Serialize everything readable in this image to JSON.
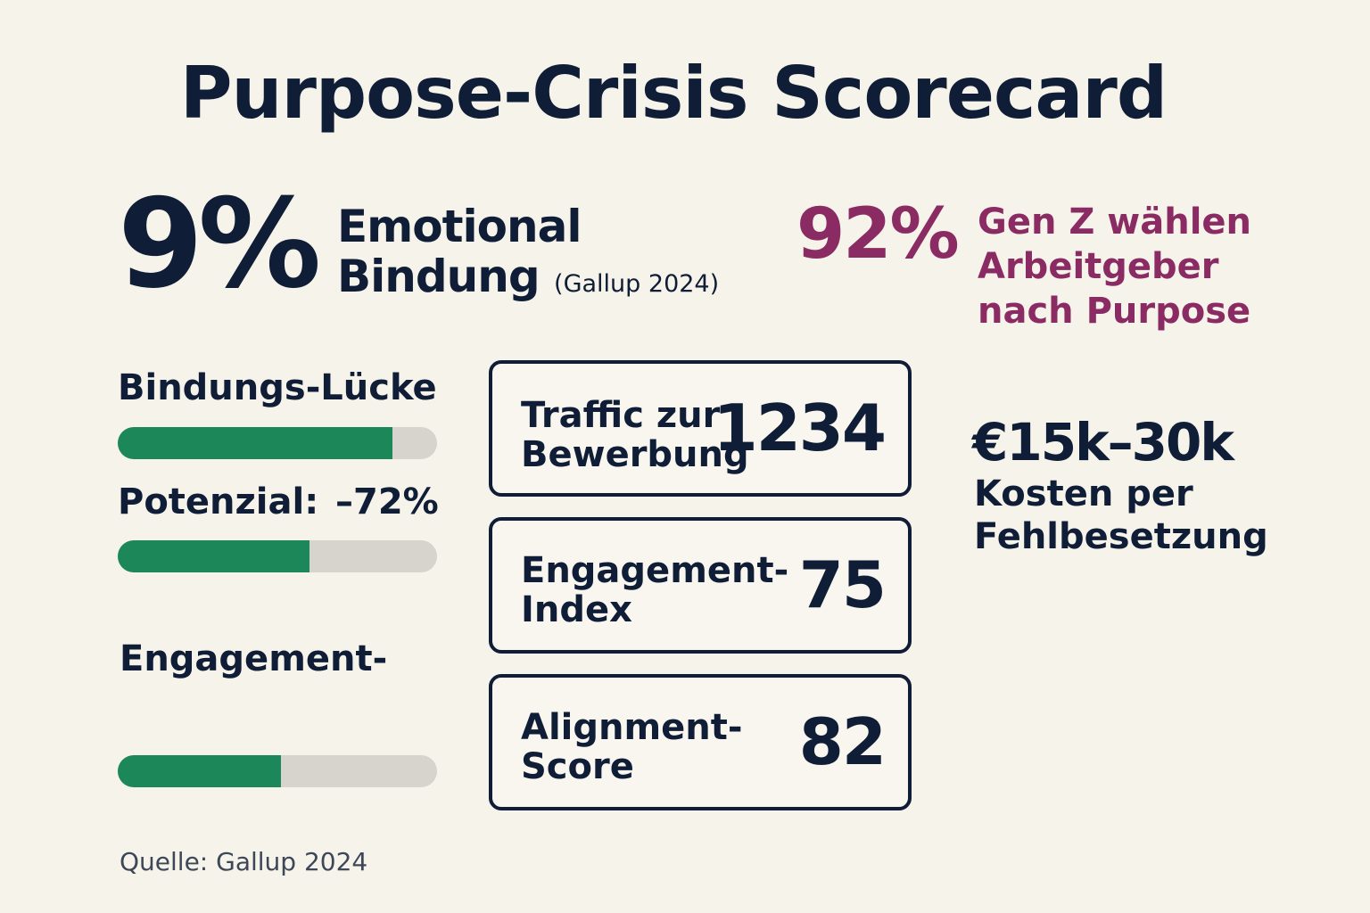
{
  "title": "Purpose-Crisis Scorecard",
  "headline_stat": {
    "value": "9%",
    "label_line1": "Emotional",
    "label_line2": "Bindung",
    "source": "(Gallup 2024)"
  },
  "genz_stat": {
    "value": "92%",
    "label_line1": "Gen Z wählen",
    "label_line2": "Arbeitgeber",
    "label_line3": "nach Purpose"
  },
  "bars": [
    {
      "label": "Bindungs-Lücke",
      "value": "",
      "fill_percent": 86
    },
    {
      "label": "Potenzial:",
      "value": "–72%",
      "fill_percent": 60
    },
    {
      "label": "Engagement-",
      "value": "",
      "fill_percent": 51
    }
  ],
  "cards": [
    {
      "label_line1": "Traffic zur",
      "label_line2": "Bewerbung",
      "value": "1234"
    },
    {
      "label_line1": "Engagement-",
      "label_line2": "Index",
      "value": "75"
    },
    {
      "label_line1": "Alignment-",
      "label_line2": "Score",
      "value": "82"
    }
  ],
  "cost": {
    "value": "€15k–30k",
    "label_line1": "Kosten per",
    "label_line2": "Fehlbesetzung"
  },
  "source": "Quelle: Gallup 2024",
  "colors": {
    "navy": "#0f1d36",
    "accent_purple": "#8a2b63",
    "bar_green": "#1c8859",
    "bar_track": "#d6d4cc",
    "background": "#f6f3ea"
  }
}
